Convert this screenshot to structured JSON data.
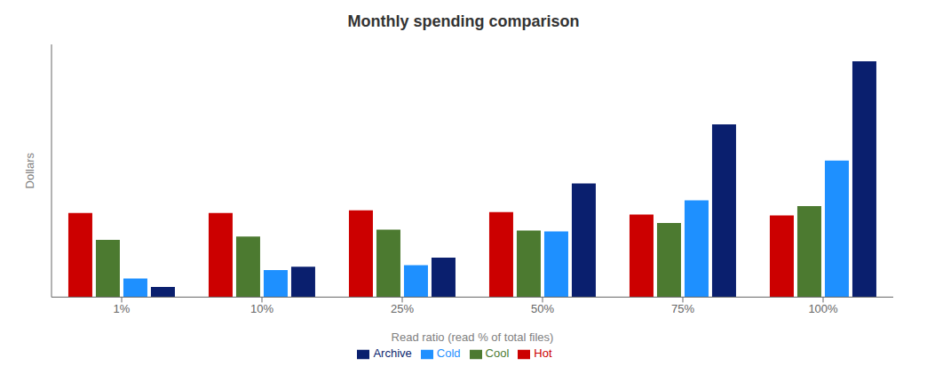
{
  "chart_data": {
    "type": "bar",
    "title": "Monthly spending comparison",
    "xlabel": "Read ratio (read % of total files)",
    "ylabel": "Dollars",
    "categories": [
      "1%",
      "10%",
      "25%",
      "50%",
      "75%",
      "100%"
    ],
    "series": [
      {
        "name": "Hot",
        "color": "#CC0000",
        "values": [
          100,
          100,
          103,
          101,
          98,
          97
        ]
      },
      {
        "name": "Cool",
        "color": "#4C7A30",
        "values": [
          68,
          72,
          80,
          79,
          88,
          108
        ]
      },
      {
        "name": "Cold",
        "color": "#1E90FF",
        "values": [
          22,
          32,
          38,
          78,
          115,
          162
        ]
      },
      {
        "name": "Archive",
        "color": "#0A1F6E",
        "values": [
          12,
          36,
          47,
          135,
          205,
          280
        ]
      }
    ],
    "ylim": [
      0,
      300
    ],
    "grid": false,
    "legend": "bottom",
    "tick_labels": "x"
  }
}
